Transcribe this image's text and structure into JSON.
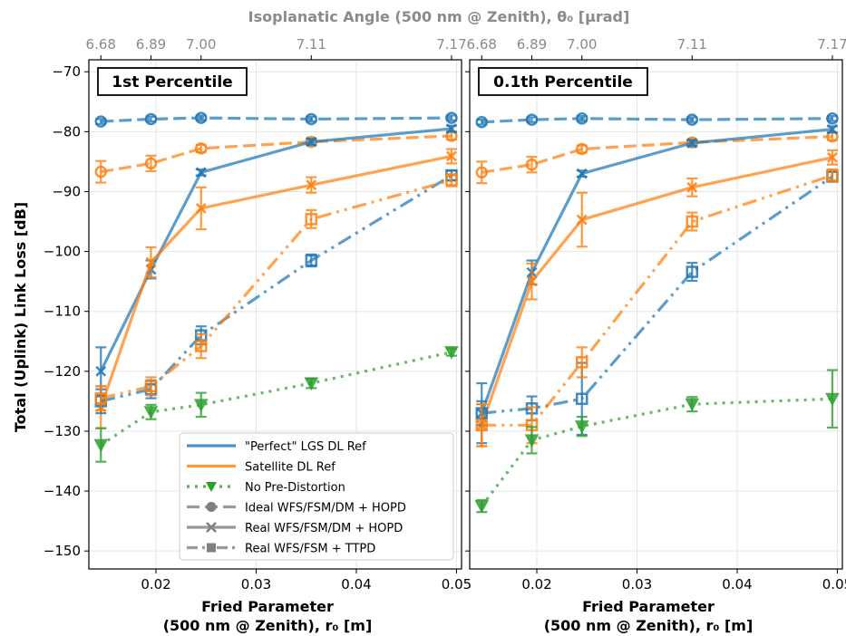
{
  "figure": {
    "top_axis_label": "Isoplanatic Angle (500 nm @ Zenith), θ₀ [μrad]",
    "y_label": "Total (Uplink) Link Loss [dB]",
    "x_label_line1": "Fried Parameter",
    "x_label_line2": "(500 nm @ Zenith), r₀ [m]"
  },
  "chart_data": {
    "type": "line",
    "shared": {
      "xlim": [
        0.0133,
        0.0505
      ],
      "ylim": [
        -153,
        -68
      ],
      "x_ticks": [
        0.02,
        0.03,
        0.04,
        0.05
      ],
      "x_tick_labels": [
        "0.02",
        "0.03",
        "0.04",
        "0.05"
      ],
      "y_ticks": [
        -150,
        -140,
        -130,
        -120,
        -110,
        -100,
        -90,
        -80,
        -70
      ],
      "y_tick_labels": [
        "−150",
        "−140",
        "−130",
        "−120",
        "−110",
        "−100",
        "−90",
        "−80",
        "−70"
      ],
      "top_ticks": [
        0.0145,
        0.0195,
        0.0245,
        0.0355,
        0.0495
      ],
      "top_tick_labels": [
        "6.68",
        "6.89",
        "7.00",
        "7.11",
        "7.17"
      ],
      "x": [
        0.0145,
        0.0195,
        0.0245,
        0.0355,
        0.0495
      ],
      "grid": true,
      "colors": {
        "lgs": "#1f77b4",
        "sat": "#ff7f0e",
        "none": "#2ca02c",
        "gray": "#808080"
      }
    },
    "legend": [
      {
        "label": "\"Perfect\" LGS DL Ref",
        "color": "#1f77b4",
        "dash": "solid",
        "marker": "none"
      },
      {
        "label": "Satellite DL Ref",
        "color": "#ff7f0e",
        "dash": "solid",
        "marker": "none"
      },
      {
        "label": "No Pre-Distortion",
        "color": "#2ca02c",
        "dash": "dotted",
        "marker": "tri"
      },
      {
        "label": "Ideal WFS/FSM/DM + HOPD",
        "color": "#808080",
        "dash": "dashed",
        "marker": "circle"
      },
      {
        "label": "Real WFS/FSM/DM + HOPD",
        "color": "#808080",
        "dash": "solid",
        "marker": "x"
      },
      {
        "label": "Real WFS/FSM + TTPD",
        "color": "#808080",
        "dash": "dashdotdot",
        "marker": "square"
      }
    ],
    "panels": [
      {
        "title": "1st Percentile",
        "series": [
          {
            "group": "lgs",
            "style": "ideal",
            "y": [
              -78.3,
              -77.9,
              -77.7,
              -77.9,
              -77.7
            ],
            "err": [
              0.4,
              0.4,
              0.4,
              0.4,
              0.4
            ]
          },
          {
            "group": "sat",
            "style": "ideal",
            "y": [
              -86.7,
              -85.3,
              -82.8,
              -81.7,
              -80.7
            ],
            "err": [
              1.8,
              1.3,
              0.6,
              0.5,
              0.6
            ]
          },
          {
            "group": "lgs",
            "style": "real",
            "y": [
              -120.0,
              -103.0,
              -86.8,
              -81.7,
              -79.5
            ],
            "err": [
              4.0,
              1.5,
              0.5,
              0.5,
              0.5
            ]
          },
          {
            "group": "sat",
            "style": "real",
            "y": [
              -126.0,
              -101.8,
              -92.8,
              -88.9,
              -84.1
            ],
            "err": [
              3.5,
              2.5,
              3.5,
              1.3,
              1.2
            ]
          },
          {
            "group": "lgs",
            "style": "ttpd",
            "y": [
              -125.0,
              -123.0,
              -114.0,
              -101.5,
              -87.3
            ],
            "err": [
              2.0,
              1.5,
              1.5,
              1.0,
              0.8
            ]
          },
          {
            "group": "sat",
            "style": "ttpd",
            "y": [
              -124.5,
              -122.5,
              -115.8,
              -94.6,
              -88.1
            ],
            "err": [
              2.0,
              1.5,
              2.0,
              1.5,
              1.0
            ]
          },
          {
            "group": "none",
            "style": "none",
            "y": [
              -132.3,
              -126.8,
              -125.6,
              -122.0,
              -116.8
            ],
            "err": [
              2.8,
              1.2,
              2.0,
              0.8,
              0.6
            ]
          }
        ]
      },
      {
        "title": "0.1th Percentile",
        "series": [
          {
            "group": "lgs",
            "style": "ideal",
            "y": [
              -78.4,
              -78.0,
              -77.8,
              -78.0,
              -77.8
            ],
            "err": [
              0.4,
              0.4,
              0.4,
              0.4,
              0.4
            ]
          },
          {
            "group": "sat",
            "style": "ideal",
            "y": [
              -86.8,
              -85.5,
              -82.9,
              -81.8,
              -80.8
            ],
            "err": [
              1.8,
              1.3,
              0.6,
              0.5,
              0.6
            ]
          },
          {
            "group": "lgs",
            "style": "real",
            "y": [
              -127.0,
              -103.5,
              -87.0,
              -81.9,
              -79.6
            ],
            "err": [
              5.0,
              2.0,
              0.5,
              0.5,
              0.5
            ]
          },
          {
            "group": "sat",
            "style": "real",
            "y": [
              -129.0,
              -105.0,
              -94.7,
              -89.3,
              -84.3
            ],
            "err": [
              3.5,
              3.0,
              4.5,
              1.5,
              1.2
            ]
          },
          {
            "group": "lgs",
            "style": "ttpd",
            "y": [
              -127.0,
              -126.2,
              -124.6,
              -103.4,
              -87.5
            ],
            "err": [
              2.0,
              2.0,
              6.0,
              1.5,
              0.8
            ]
          },
          {
            "group": "sat",
            "style": "ttpd",
            "y": [
              -129.0,
              -129.0,
              -118.5,
              -95.0,
              -87.3
            ],
            "err": [
              3.5,
              3.0,
              2.5,
              1.5,
              1.0
            ]
          },
          {
            "group": "none",
            "style": "none",
            "y": [
              -142.5,
              -131.5,
              -129.2,
              -125.5,
              -124.6
            ],
            "err": [
              1.0,
              2.2,
              1.6,
              1.2,
              4.8
            ]
          }
        ]
      }
    ]
  }
}
